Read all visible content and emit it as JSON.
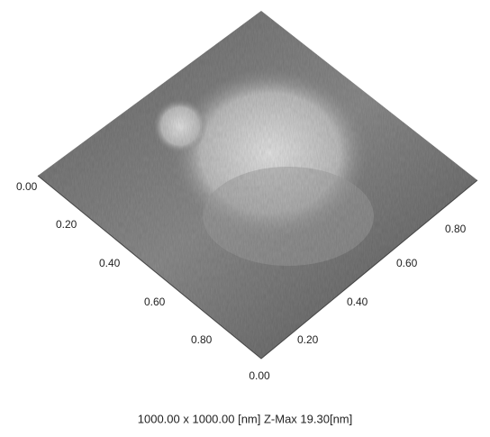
{
  "left_axis": {
    "ticks": [
      "0.00",
      "0.20",
      "0.40",
      "0.60",
      "0.80"
    ]
  },
  "right_axis": {
    "ticks": [
      "0.00",
      "0.20",
      "0.40",
      "0.60",
      "0.80"
    ]
  },
  "caption": "1000.00 x 1000.00 [nm]  Z-Max 19.30[nm]"
}
